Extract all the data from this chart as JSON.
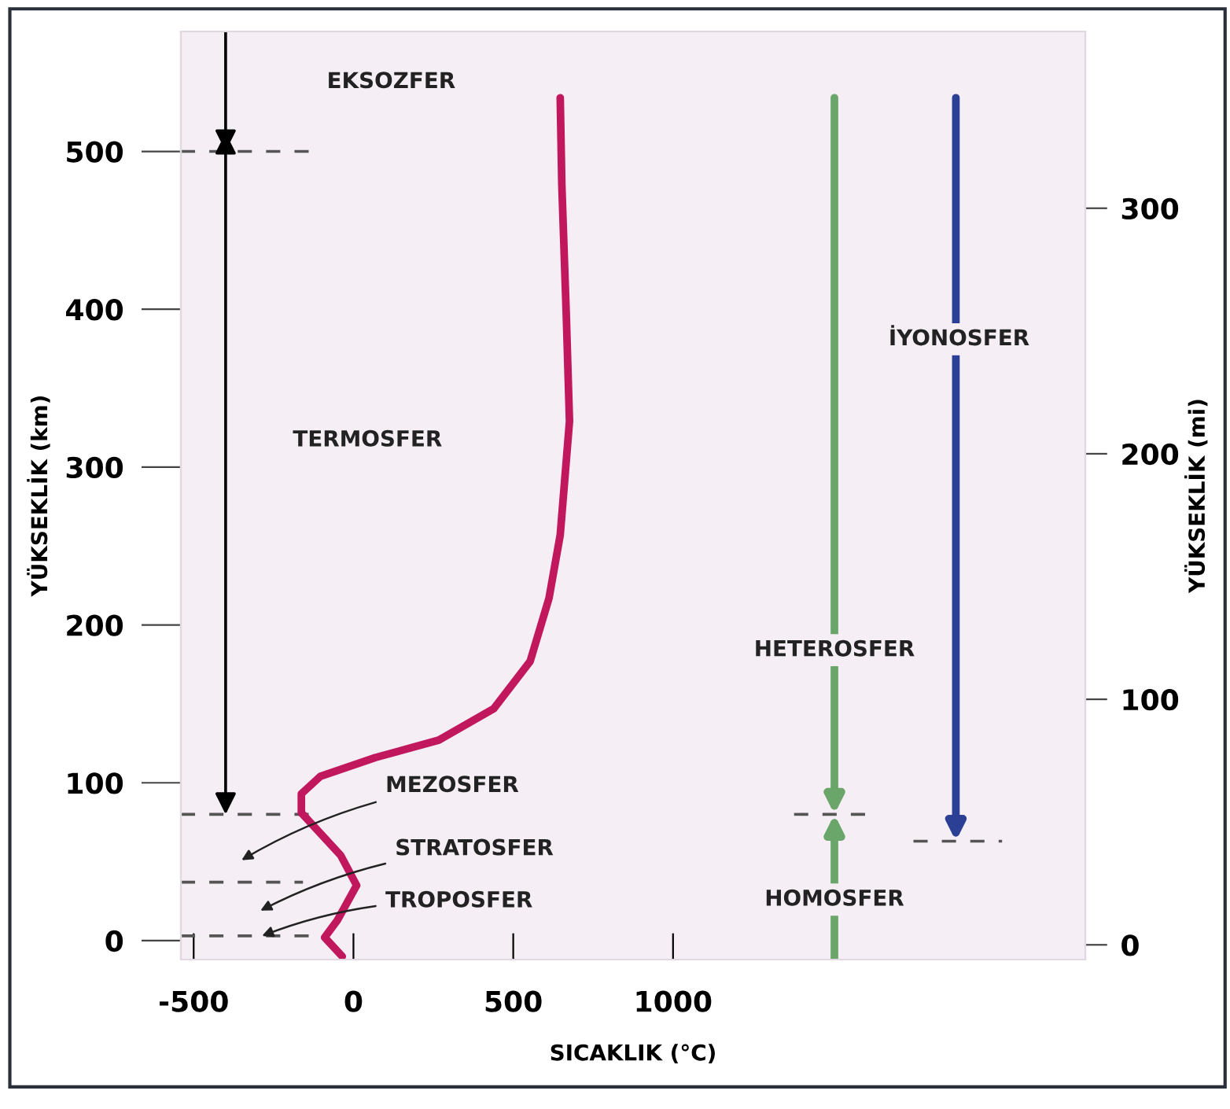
{
  "chart_data": {
    "type": "line",
    "xlabel": "SICAKLIK (°C)",
    "ylabel": "YÜKSEKLİK (km)",
    "y2label": "YÜKSEKLİK (mi)",
    "series": [
      {
        "color": "#c0175d",
        "x": [
          -35,
          -90,
          -50,
          10,
          -40,
          -163,
          -163,
          -104,
          69,
          267,
          439,
          553,
          612,
          647,
          676,
          666,
          652,
          647
        ],
        "values": [
          -10,
          2,
          13,
          35,
          54,
          81,
          93,
          104,
          116,
          127,
          147,
          177,
          217,
          257,
          329,
          396,
          479,
          534
        ]
      }
    ],
    "xlim": [
      -540,
      2290
    ],
    "xticks": [
      -500,
      0,
      500,
      1000
    ],
    "ylim": [
      -12,
      576
    ],
    "yticks": [
      0,
      100,
      200,
      300,
      400,
      500
    ],
    "y2lim": [
      -6,
      372
    ],
    "y2ticks": [
      0,
      100,
      200,
      300
    ],
    "ref_lines": [
      {
        "axis": "y",
        "value": 500,
        "line_style": "dashed"
      },
      {
        "axis": "y",
        "value": 80,
        "line_style": "dashed"
      },
      {
        "axis": "y",
        "value": 37,
        "line_style": "dashed"
      },
      {
        "axis": "y",
        "value": 3,
        "line_style": "dashed"
      },
      {
        "axis": "y",
        "value": 63,
        "line_style": "dashed"
      }
    ],
    "annotations": [
      "EKSOZFER",
      "TERMOSFER",
      "MEZOSFER",
      "STRATOSFER",
      {
        "text": "TROPOSFER",
        "x": -286,
        "y": 3
      },
      "HETEROSFER",
      "HOMOSFER",
      "İYONOSFER"
    ],
    "grid": false,
    "marker": "none",
    "line_style": "solid"
  }
}
